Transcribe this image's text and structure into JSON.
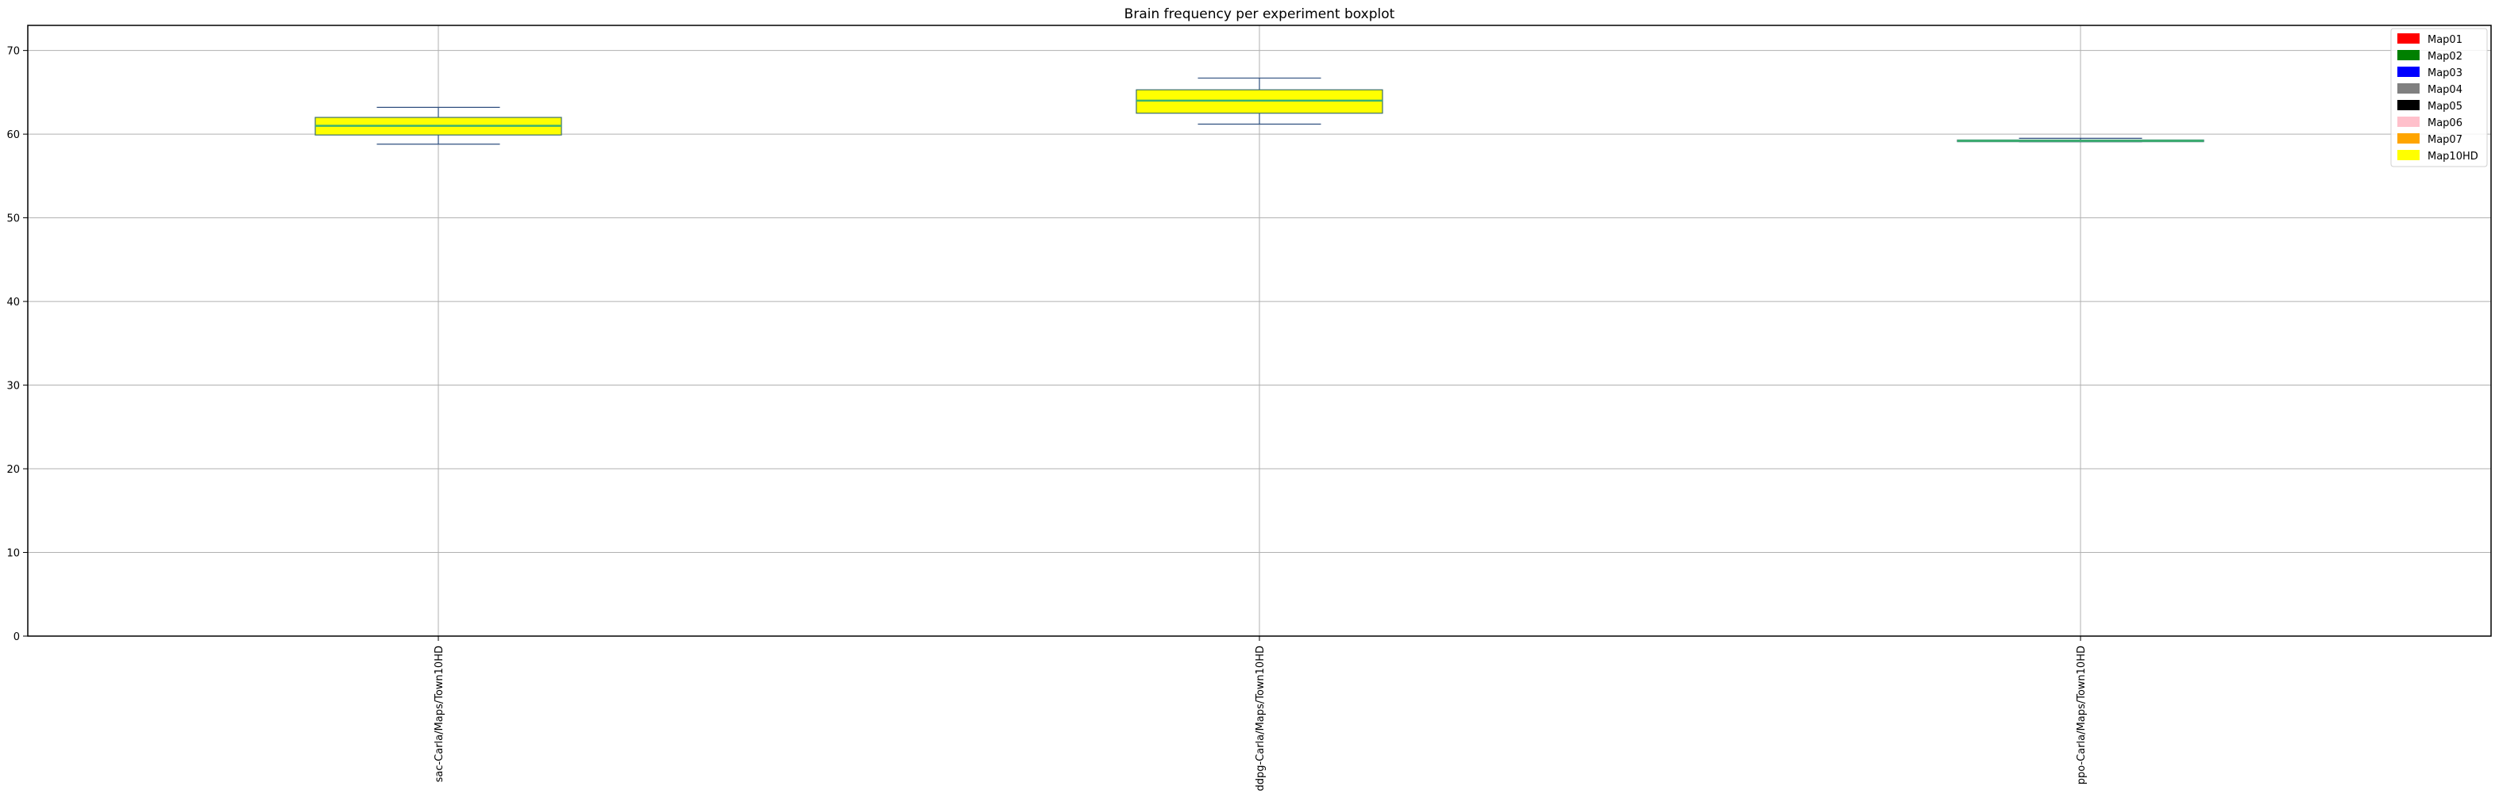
{
  "chart_data": {
    "type": "boxplot",
    "title": "Brain frequency per experiment boxplot",
    "xlabel": "",
    "ylabel": "",
    "ylim": [
      0,
      73
    ],
    "yticks": [
      0,
      10,
      20,
      30,
      40,
      50,
      60,
      70
    ],
    "grid": true,
    "legend_position": "top-right",
    "categories": [
      "sac-Carla/Maps/Town10HD",
      "ddpg-Carla/Maps/Town10HD",
      "ppo-Carla/Maps/Town10HD"
    ],
    "boxes": [
      {
        "category": "sac-Carla/Maps/Town10HD",
        "map": "Map10HD",
        "whislo": 58.8,
        "q1": 59.9,
        "med": 61.0,
        "q3": 62.0,
        "whishi": 63.2,
        "fill": "#ffff00",
        "median_color": "#3cb371"
      },
      {
        "category": "ddpg-Carla/Maps/Town10HD",
        "map": "Map10HD",
        "whislo": 61.2,
        "q1": 62.5,
        "med": 64.0,
        "q3": 65.3,
        "whishi": 66.7,
        "fill": "#ffff00",
        "median_color": "#3cb371"
      },
      {
        "category": "ppo-Carla/Maps/Town10HD",
        "map": "Map10HD",
        "whislo": 59.1,
        "q1": 59.1,
        "med": 59.2,
        "q3": 59.3,
        "whishi": 59.5,
        "fill": "#ffff00",
        "median_color": "#3cb371"
      }
    ],
    "legend": [
      {
        "label": "Map01",
        "color": "#ff0000"
      },
      {
        "label": "Map02",
        "color": "#008000"
      },
      {
        "label": "Map03",
        "color": "#0000ff"
      },
      {
        "label": "Map04",
        "color": "#808080"
      },
      {
        "label": "Map05",
        "color": "#000000"
      },
      {
        "label": "Map06",
        "color": "#ffc0cb"
      },
      {
        "label": "Map07",
        "color": "#ffa500"
      },
      {
        "label": "Map10HD",
        "color": "#ffff00"
      }
    ]
  }
}
